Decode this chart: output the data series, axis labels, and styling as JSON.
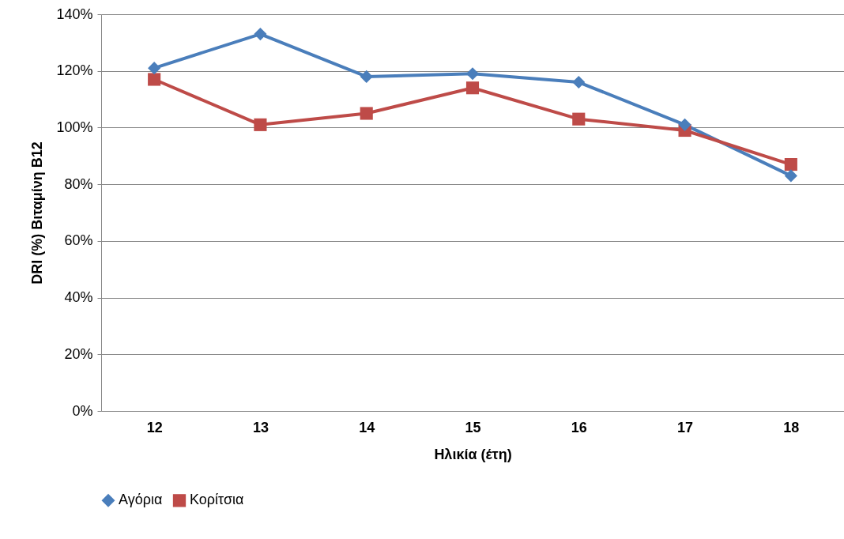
{
  "chart_data": {
    "type": "line",
    "xlabel": "Ηλικία (έτη)",
    "ylabel": "DRI (%) Βιταμίνη Β12",
    "categories": [
      "12",
      "13",
      "14",
      "15",
      "16",
      "17",
      "18"
    ],
    "series": [
      {
        "name": "Αγόρια",
        "color": "#4a7ebb",
        "marker": "diamond",
        "values": [
          121,
          133,
          118,
          119,
          116,
          101,
          83
        ]
      },
      {
        "name": "Κορίτσια",
        "color": "#be4b48",
        "marker": "square",
        "values": [
          117,
          101,
          105,
          114,
          103,
          99,
          87
        ]
      }
    ],
    "ylim": [
      0,
      140
    ],
    "yticks": [
      {
        "value": 0,
        "label": "0%"
      },
      {
        "value": 20,
        "label": "20%"
      },
      {
        "value": 40,
        "label": "40%"
      },
      {
        "value": 60,
        "label": "60%"
      },
      {
        "value": 80,
        "label": "80%"
      },
      {
        "value": 100,
        "label": "100%"
      },
      {
        "value": 120,
        "label": "120%"
      },
      {
        "value": 140,
        "label": "140%"
      }
    ],
    "grid": "y",
    "legend": "bottom",
    "line_style": "solid"
  }
}
